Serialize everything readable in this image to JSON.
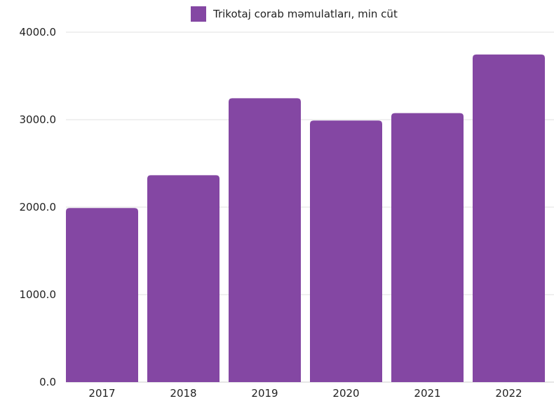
{
  "chart_data": {
    "type": "bar",
    "categories": [
      "2017",
      "2018",
      "2019",
      "2020",
      "2021",
      "2022"
    ],
    "series": [
      {
        "name": "Trikotaj corab məmulatları, min cüt",
        "values": [
          1990,
          2365,
          3245,
          2990,
          3075,
          3745
        ]
      }
    ],
    "y_ticks": [
      "0.0",
      "1000.0",
      "2000.0",
      "3000.0",
      "4000.0"
    ],
    "ylim": [
      0,
      4000
    ],
    "grid": true,
    "legend_position": "top",
    "bar_color": "#8447a3"
  }
}
